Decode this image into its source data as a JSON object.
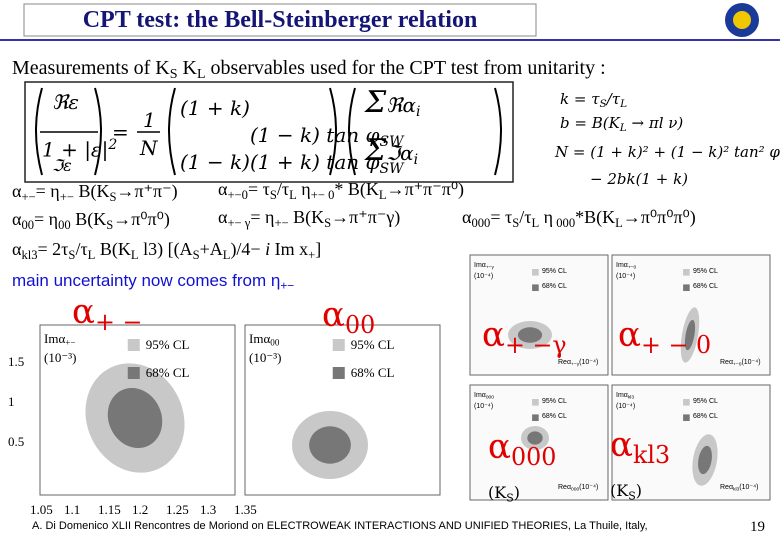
{
  "header": {
    "title": "CPT test: the Bell-Steinberger relation"
  },
  "subtitle": [
    "Measurements of K",
    "S",
    "  K",
    "L",
    " observables used for the CPT test from unitarity :"
  ],
  "equation": {
    "lhs": [
      "ℜε",
      "1 + |ε|",
      "2",
      "ℑε"
    ],
    "eq": "=",
    "one": "1",
    "N": "N",
    "matrix": [
      "(1 + k)",
      "(1 − k) tan φ",
      "SW",
      "(1 − k)",
      "(1 + k) tan φ",
      "SW"
    ],
    "sums": [
      "Σ",
      "ℜα",
      "i",
      "Σ",
      "ℑα",
      "i"
    ]
  },
  "defs": {
    "k": [
      "k = τ",
      "S",
      "/τ",
      "L"
    ],
    "b": [
      "b = B(K",
      "L",
      " → πl ν)"
    ],
    "N": [
      "N = (1 + k)² + (1 − k)² tan² φ",
      "SW"
    ],
    "N2": "− 2bk(1 + k)"
  },
  "alphas": {
    "pm": [
      "α",
      "+−",
      "= η",
      "+−",
      " B(K",
      "S",
      "→π⁺π⁻)"
    ],
    "pm0": [
      "α",
      "+−0",
      "= τ",
      "S",
      "/τ",
      "L",
      " η",
      "+− 0",
      "* B(K",
      "L",
      "→π⁺π⁻π⁰)"
    ],
    "zz": [
      "α",
      "00",
      "= η",
      "00",
      " B(K",
      "S",
      "→π⁰π⁰)"
    ],
    "pmg": [
      "α",
      "+− γ",
      "= η",
      "+−",
      " B(K",
      "S",
      "→π⁺π⁻γ)"
    ],
    "zzz": [
      "α",
      "000",
      "= τ",
      "S",
      "/τ",
      "L",
      " η",
      " 000",
      "*B(K",
      "L",
      "→π⁰π⁰π⁰)"
    ],
    "kl3": [
      "α",
      "kl3",
      "= 2τ",
      "S",
      "/τ",
      "L",
      " B(K",
      "L",
      " l3) [(A",
      "S",
      "+A",
      "L",
      ")/4− ",
      "i",
      " Im x",
      "+",
      "]"
    ]
  },
  "note": [
    "main uncertainty now comes from η",
    "+−"
  ],
  "labels": {
    "pm": [
      "α",
      "+ −"
    ],
    "zz": [
      "α",
      "00"
    ],
    "pmg": [
      "α",
      "+ −γ"
    ],
    "pm0": [
      "α",
      "+ − 0"
    ],
    "zzz": [
      "α",
      "000",
      "(K",
      "S",
      ")"
    ],
    "kl3": [
      "α",
      "kl3",
      "(K",
      "S",
      ")"
    ]
  },
  "plots": [
    {
      "ylabel": [
        "Imα",
        "+−",
        "(10⁻³)"
      ],
      "legend": [
        "95% CL",
        "68% CL"
      ],
      "xticks": [
        "1.05",
        "1.1",
        "1.15",
        "1.2",
        "1.25",
        "1.3",
        "1.35"
      ],
      "yticks": [
        "1.5",
        "1",
        "0.5"
      ]
    },
    {
      "ylabel": [
        "Imα",
        "00",
        "(10⁻³)"
      ],
      "legend": [
        "95% CL",
        "68% CL"
      ]
    },
    {
      "ylabel": [
        "Imα",
        "+−γ",
        "(10⁻⁴)"
      ],
      "legend": [
        "95% CL",
        "68% CL"
      ],
      "xlabel": [
        "Reα",
        "+−γ",
        "(10⁻⁴)"
      ]
    },
    {
      "ylabel": [
        "Imα",
        "+−0",
        "(10⁻⁴)"
      ],
      "legend": [
        "95% CL",
        "68% CL"
      ],
      "xlabel": [
        "Reα",
        "+−0",
        "(10⁻⁴)"
      ]
    },
    {
      "ylabel": [
        "Imα",
        "000",
        "(10⁻⁴)"
      ],
      "legend": [
        "95% CL",
        "68% CL"
      ],
      "xlabel": [
        "Reα",
        "000",
        "(10⁻⁴)"
      ]
    },
    {
      "ylabel": [
        "Imα",
        "kl3",
        "(10⁻⁴)"
      ],
      "legend": [
        "95% CL",
        "68% CL"
      ],
      "xlabel": [
        "Reα",
        "kl3",
        "(10⁻⁴)"
      ]
    }
  ],
  "footer": {
    "text": "A. Di Domenico   XLII Rencontres de Moriond on ELECTROWEAK INTERACTIONS AND UNIFIED THEORIES, La Thuile, Italy,",
    "page": "19"
  }
}
